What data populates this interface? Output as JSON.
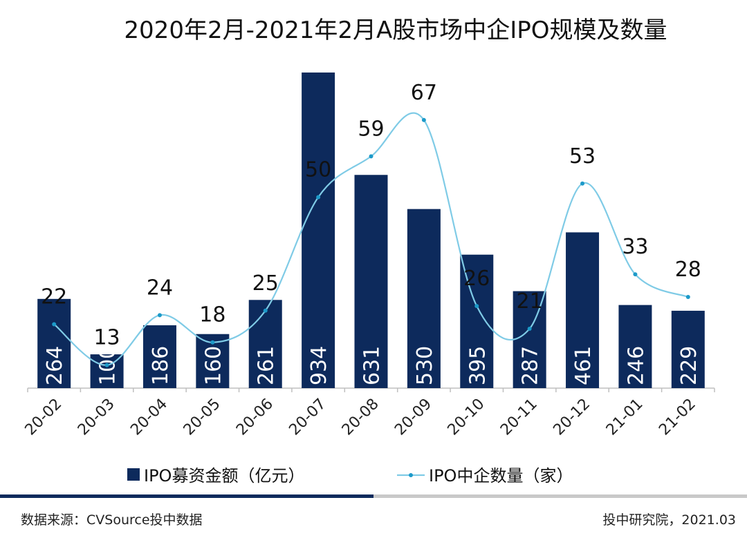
{
  "chart_data": {
    "type": "bar",
    "title": "2020年2月-2021年2月A股市场中企IPO规模及数量",
    "categories": [
      "20-02",
      "20-03",
      "20-04",
      "20-05",
      "20-06",
      "20-07",
      "20-08",
      "20-09",
      "20-10",
      "20-11",
      "20-12",
      "21-01",
      "21-02"
    ],
    "series": [
      {
        "name": "IPO募资金额（亿元）",
        "type": "bar",
        "color": "#0d2a5c",
        "values": [
          264,
          100,
          186,
          160,
          261,
          934,
          631,
          530,
          395,
          287,
          461,
          246,
          229
        ]
      },
      {
        "name": "IPO中企数量（家）",
        "type": "line",
        "color": "#7fcbe6",
        "values": [
          22,
          13,
          24,
          18,
          25,
          50,
          59,
          67,
          26,
          21,
          53,
          33,
          28
        ]
      }
    ],
    "legend_position": "bottom",
    "grid": false
  },
  "footer": {
    "source": "数据来源：CVSource投中数据",
    "credit": "投中研究院，2021.03"
  }
}
